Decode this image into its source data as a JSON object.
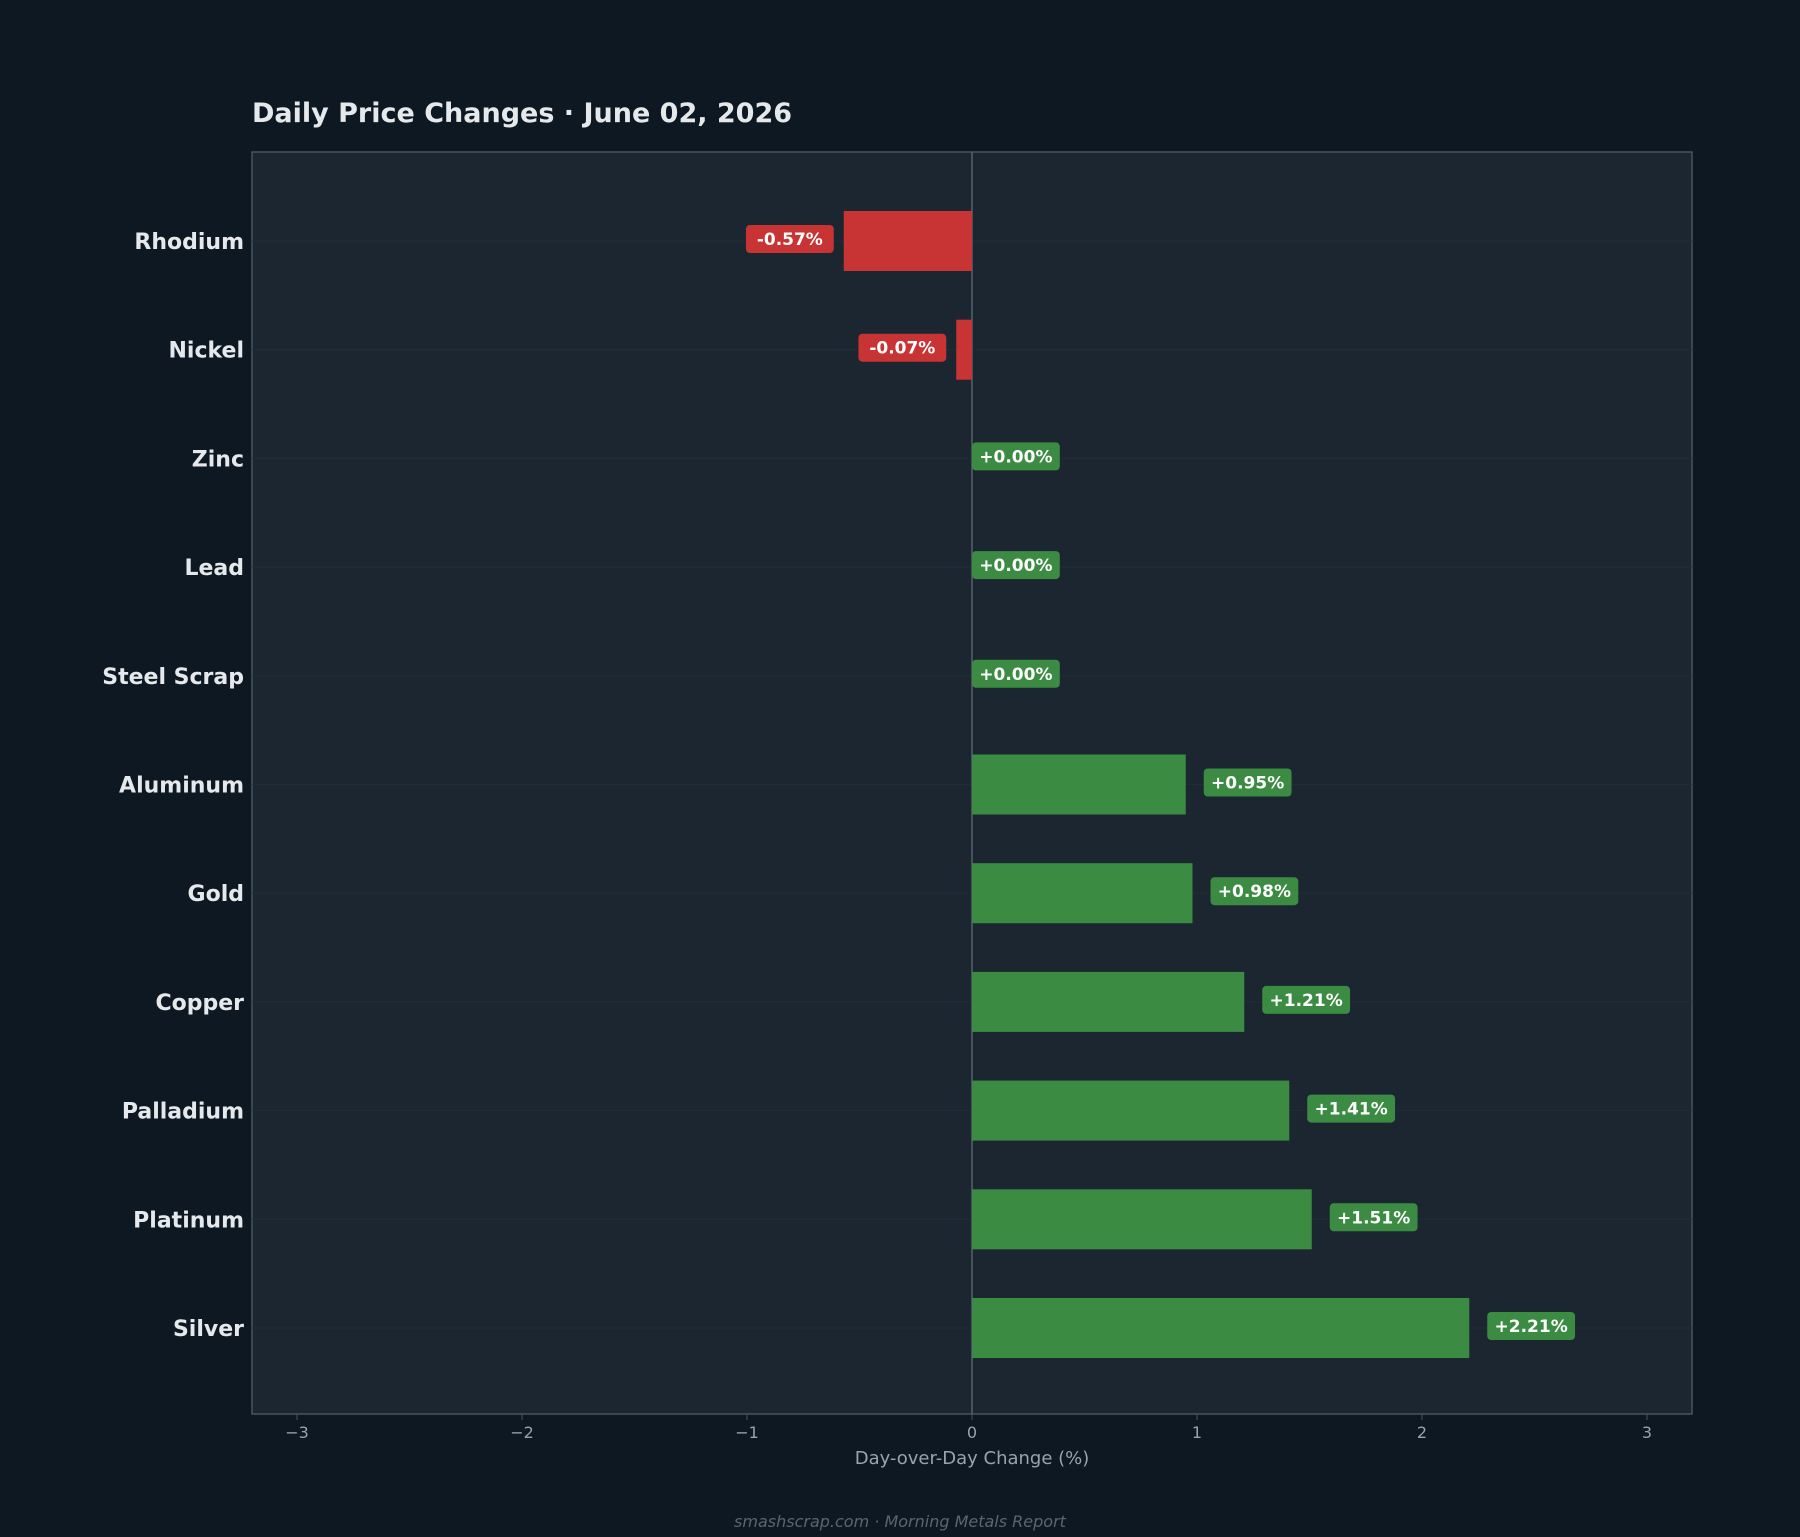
{
  "chart_data": {
    "type": "bar",
    "orientation": "horizontal",
    "title": "Daily Price Changes  ·  June 02, 2026",
    "xlabel": "Day-over-Day Change (%)",
    "ylabel": "",
    "xlim": [
      -3.2,
      3.2
    ],
    "xticks": [
      -3,
      -2,
      -1,
      0,
      1,
      2,
      3
    ],
    "xtick_labels": [
      "−3",
      "−2",
      "−1",
      "0",
      "1",
      "2",
      "3"
    ],
    "categories": [
      "Rhodium",
      "Nickel",
      "Zinc",
      "Lead",
      "Steel Scrap",
      "Aluminum",
      "Gold",
      "Copper",
      "Palladium",
      "Platinum",
      "Silver"
    ],
    "values": [
      -0.57,
      -0.07,
      0.0,
      0.0,
      0.0,
      0.95,
      0.98,
      1.21,
      1.41,
      1.51,
      2.21
    ],
    "value_labels": [
      "-0.57%",
      "-0.07%",
      "+0.00%",
      "+0.00%",
      "+0.00%",
      "+0.95%",
      "+0.98%",
      "+1.21%",
      "+1.41%",
      "+1.51%",
      "+2.21%"
    ],
    "grid": false,
    "colors": {
      "positive": "#3b8b43",
      "negative": "#c83434",
      "background": "#0e1822",
      "plot_background": "#1b2631",
      "frame": "#48535e"
    }
  },
  "footer": "smashscrap.com  ·  Morning Metals Report"
}
